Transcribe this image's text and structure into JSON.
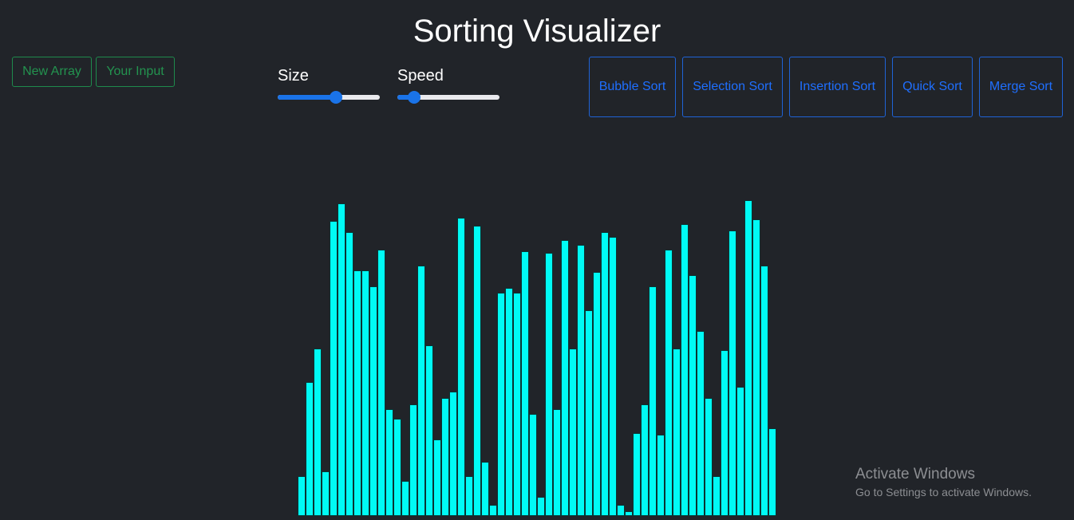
{
  "header": {
    "title": "Sorting Visualizer"
  },
  "controls": {
    "new_array_label": "New Array",
    "your_input_label": "Your Input",
    "size": {
      "label": "Size",
      "value": 0.58
    },
    "speed": {
      "label": "Speed",
      "value": 0.12
    }
  },
  "algorithms": [
    {
      "label": "Bubble Sort"
    },
    {
      "label": "Selection Sort"
    },
    {
      "label": "Insertion Sort"
    },
    {
      "label": "Quick Sort"
    },
    {
      "label": "Merge Sort"
    }
  ],
  "colors": {
    "background": "#212429",
    "bar": "#00fbf5",
    "green_outline": "#1e8a4c",
    "blue_outline": "#1f63d6",
    "slider": "#1a73e8"
  },
  "chart_data": {
    "type": "bar",
    "values": [
      50,
      168,
      210,
      56,
      370,
      392,
      356,
      308,
      308,
      288,
      334,
      134,
      122,
      44,
      140,
      314,
      214,
      96,
      148,
      156,
      374,
      50,
      364,
      68,
      14,
      280,
      286,
      280,
      332,
      128,
      24,
      330,
      134,
      346,
      210,
      340,
      258,
      306,
      356,
      350,
      14,
      6,
      104,
      140,
      288,
      102,
      334,
      210,
      366,
      302,
      232,
      148,
      50,
      208,
      358,
      162,
      396,
      372,
      314,
      110
    ]
  },
  "watermark": {
    "title": "Activate Windows",
    "subtitle": "Go to Settings to activate Windows."
  }
}
